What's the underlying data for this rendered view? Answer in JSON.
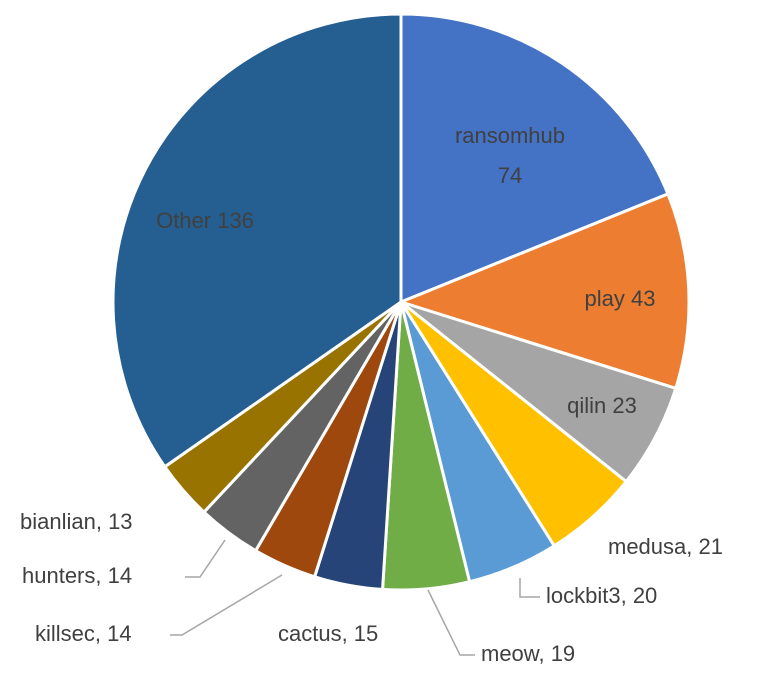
{
  "chart_data": {
    "type": "pie",
    "labels": [
      [
        "ransomhub",
        "74"
      ],
      "play 43",
      "qilin 23",
      "medusa, 21",
      "lockbit3, 20",
      "meow, 19",
      "cactus, 15",
      "killsec, 14",
      "hunters, 14",
      "bianlian, 13",
      "Other 136"
    ],
    "values": [
      74,
      43,
      23,
      21,
      20,
      19,
      15,
      14,
      14,
      13,
      136
    ],
    "colors": [
      "#4472c4",
      "#ed7d31",
      "#a5a5a5",
      "#ffc000",
      "#5b9bd5",
      "#70ad47",
      "#264478",
      "#9e480e",
      "#636363",
      "#997300",
      "#255e91"
    ]
  }
}
